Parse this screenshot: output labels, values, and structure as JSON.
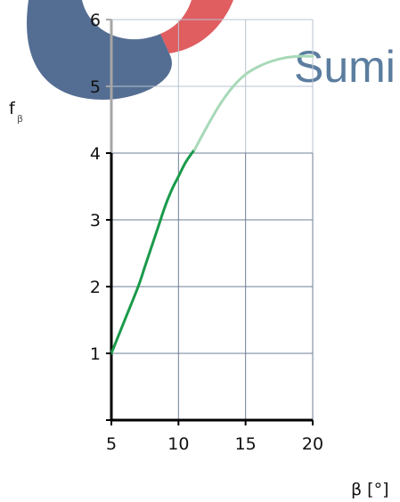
{
  "chart_data": {
    "type": "line",
    "xlabel": "β [°]",
    "ylabel": "f",
    "ylabel_subscript": "β",
    "xlim": [
      5,
      20
    ],
    "ylim": [
      0,
      6
    ],
    "x_ticks": [
      5,
      10,
      15,
      20
    ],
    "y_ticks": [
      1,
      2,
      3,
      4,
      5,
      6
    ],
    "grid": true,
    "series": [
      {
        "color": "#1a9a4a",
        "x": [
          5,
          6,
          7,
          7.5,
          8,
          8.5,
          9,
          9.5,
          10,
          10.5,
          11,
          11.2
        ],
        "y": [
          1.0,
          1.5,
          2.0,
          2.3,
          2.6,
          2.9,
          3.2,
          3.45,
          3.65,
          3.85,
          4.0,
          4.05
        ]
      },
      {
        "color": "#a8d9b8",
        "x": [
          11.2,
          12,
          13,
          14,
          15,
          16,
          17,
          18,
          19,
          20
        ],
        "y": [
          4.05,
          4.35,
          4.7,
          4.98,
          5.18,
          5.3,
          5.38,
          5.43,
          5.45,
          5.45
        ]
      }
    ]
  },
  "watermark": {
    "logo_text": "Sumi",
    "colors": {
      "navy": "#2e4d7a",
      "red": "#d9393c"
    }
  }
}
